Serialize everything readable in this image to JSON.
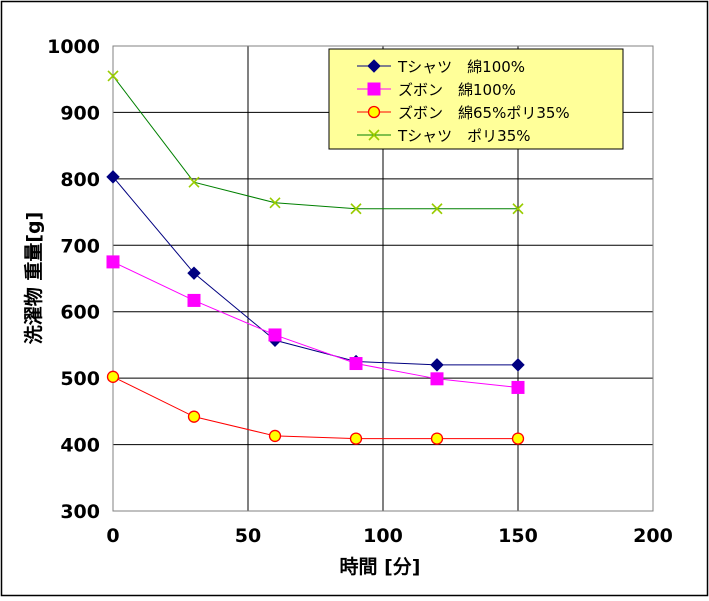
{
  "chart_data": {
    "type": "line",
    "xlabel": "時間 [分]",
    "ylabel": "洗濯物 重量[g]",
    "xlim": [
      0,
      200
    ],
    "ylim": [
      300,
      1000
    ],
    "xticks": [
      0,
      50,
      100,
      150,
      200
    ],
    "yticks": [
      300,
      400,
      500,
      600,
      700,
      800,
      900,
      1000
    ],
    "grid": true,
    "legend_position": "top-right",
    "background_color": "#ffffff",
    "legend_background": "#ffff99",
    "series": [
      {
        "name": "Tシャツ　綿100%",
        "color": "#000080",
        "marker": "diamond",
        "marker_fill": "#000080",
        "marker_stroke": "#000080",
        "x": [
          0,
          30,
          60,
          90,
          120,
          150
        ],
        "y": [
          803,
          658,
          557,
          525,
          520,
          520
        ]
      },
      {
        "name": "ズボン　綿100%",
        "color": "#ff00ff",
        "marker": "square",
        "marker_fill": "#ff00ff",
        "marker_stroke": "#ff00ff",
        "x": [
          0,
          30,
          60,
          90,
          120,
          150
        ],
        "y": [
          675,
          617,
          565,
          522,
          499,
          486
        ]
      },
      {
        "name": "ズボン　綿65%ポリ35%",
        "color": "#ff0000",
        "marker": "circle",
        "marker_fill": "#ffff00",
        "marker_stroke": "#ff0000",
        "x": [
          0,
          30,
          60,
          90,
          120,
          150
        ],
        "y": [
          502,
          442,
          413,
          409,
          409,
          409
        ]
      },
      {
        "name": "Tシャツ　ポリ35%",
        "color": "#008000",
        "marker": "x",
        "marker_fill": "none",
        "marker_stroke": "#99cc00",
        "x": [
          0,
          30,
          60,
          90,
          120,
          150
        ],
        "y": [
          955,
          795,
          764,
          755,
          755,
          755
        ]
      }
    ]
  }
}
